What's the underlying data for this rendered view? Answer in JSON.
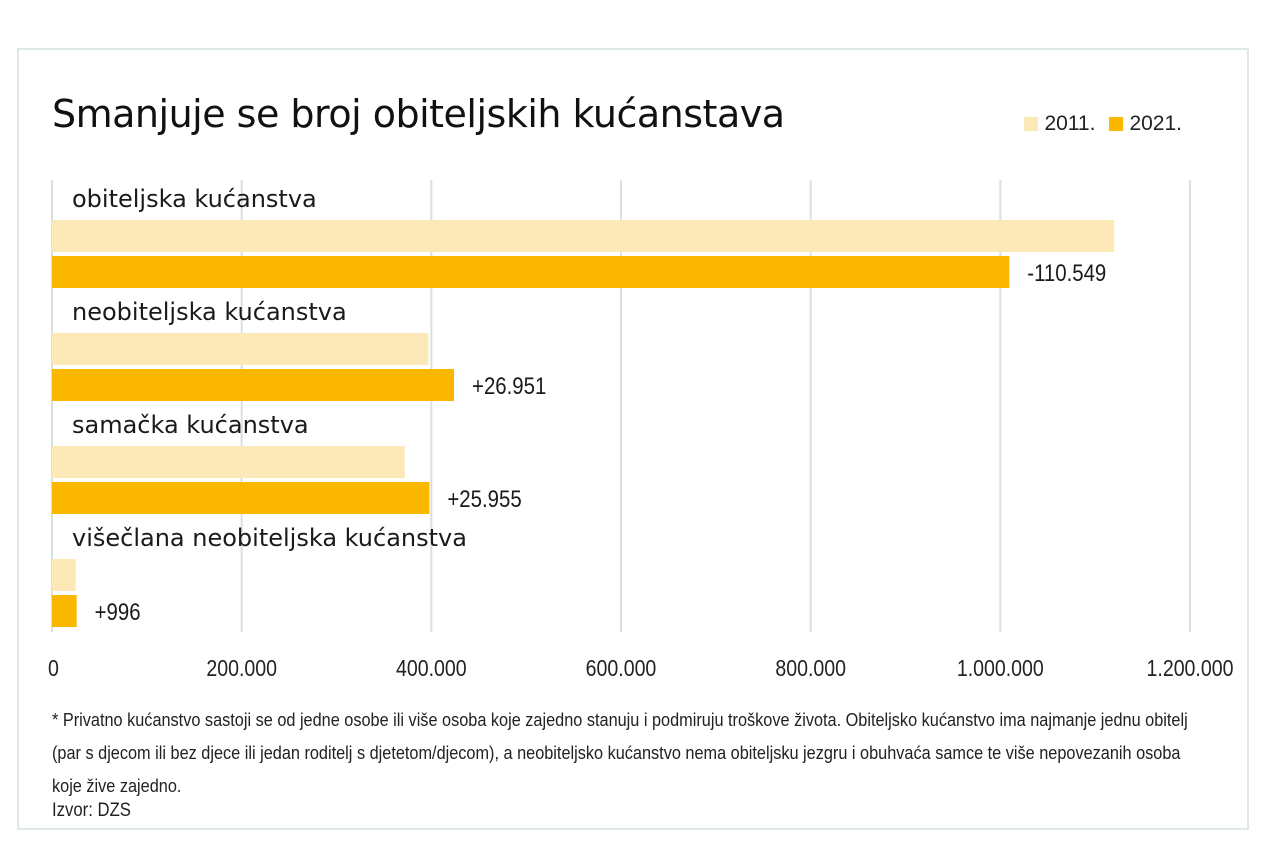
{
  "title": "Smanjuje se broj obiteljskih kućanstava",
  "footnote": "* Privatno kućanstvo sastoji se od jedne osobe ili više osoba koje zajedno stanuju i podmiruju troškove života. Obiteljsko kućanstvo ima najmanje jednu obitelj (par s djecom ili bez djece ili jedan roditelj s djetetom/djecom), a neobiteljsko kućanstvo nema obiteljsku jezgru i obuhvaća samce te više nepovezanih osoba koje žive zajedno.",
  "source": "Izvor: DZS",
  "colors": {
    "y2011": "#fde9b8",
    "y2021": "#fbb700",
    "grid": "#d5e3df"
  },
  "chart_data": {
    "type": "bar",
    "orientation": "horizontal",
    "title": "Smanjuje se broj obiteljskih kućanstava",
    "categories": [
      "obiteljska kućanstva",
      "neobiteljska kućanstva",
      "samačka kućanstva",
      "višečlana neobiteljska kućanstva"
    ],
    "series": [
      {
        "name": "2011.",
        "values": [
          1120000,
          397000,
          372000,
          25000
        ]
      },
      {
        "name": "2021.",
        "values": [
          1009451,
          423951,
          397955,
          25996
        ]
      }
    ],
    "data_labels": [
      "-110.549",
      "+26.951",
      "+25.955",
      "+996"
    ],
    "xlim": [
      0,
      1200000
    ],
    "xticks": [
      0,
      200000,
      400000,
      600000,
      800000,
      1000000,
      1200000
    ],
    "xtick_labels": [
      "0",
      "200.000",
      "400.000",
      "600.000",
      "800.000",
      "1.000.000",
      "1.200.000"
    ],
    "grid": true,
    "legend": "top-right"
  }
}
